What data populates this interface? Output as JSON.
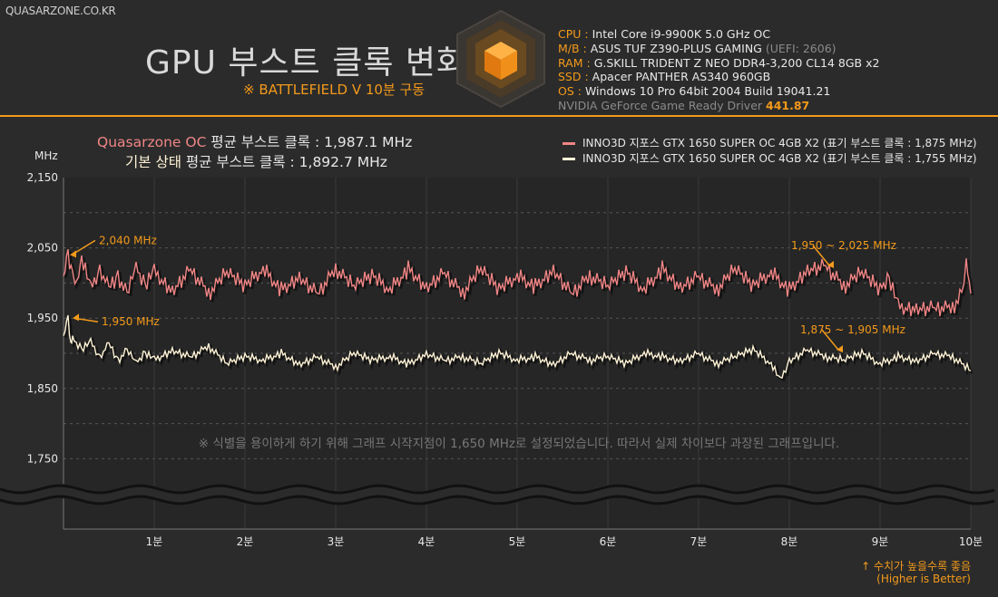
{
  "site_label": "QUASARZONE.CO.KR",
  "title": "GPU 부스트 클록 변화",
  "subtitle": "※ BATTLEFIELD V 10분 구동",
  "specs": [
    {
      "key": "CPU",
      "value": "Intel Core i9-9900K 5.0 GHz OC",
      "note": ""
    },
    {
      "key": "M/B",
      "value": "ASUS TUF Z390-PLUS GAMING",
      "note": "(UEFI: 2606)"
    },
    {
      "key": "RAM",
      "value": "G.SKILL TRIDENT Z NEO DDR4-3,200 CL14 8GB x2",
      "note": ""
    },
    {
      "key": "SSD",
      "value": "Apacer PANTHER AS340 960GB",
      "note": ""
    },
    {
      "key": "OS",
      "value": "Windows 10 Pro 64bit 2004 Build 19041.21",
      "note": ""
    }
  ],
  "driver": {
    "label": "NVIDIA GeForce Game Ready Driver",
    "version": "441.87"
  },
  "averages": [
    {
      "name": "Quasarzone OC",
      "text": "평균 부스트 클록 : 1,987.1 MHz"
    },
    {
      "name": "기본 상태",
      "text": "평균 부스트 클록 : 1,892.7 MHz"
    }
  ],
  "better_note": {
    "line1": "↑ 수치가 높을수록 좋음",
    "line2": "(Higher is Better)"
  },
  "colors": {
    "oc": "#f08585",
    "stock": "#fff3d6",
    "accent": "#f39a1b",
    "background": "#2b2b2b"
  },
  "chart_data": {
    "type": "line",
    "ylabel": "MHz",
    "ylim": [
      1650,
      2150
    ],
    "yticks": [
      1750,
      1850,
      1950,
      2050,
      2150
    ],
    "ytick_labels": [
      "1,750",
      "1,850",
      "1,950",
      "2,050",
      "2,150"
    ],
    "xlim": [
      0,
      10
    ],
    "xticks": [
      1,
      2,
      3,
      4,
      5,
      6,
      7,
      8,
      9,
      10
    ],
    "xtick_labels": [
      "1분",
      "2분",
      "3분",
      "4분",
      "5분",
      "6분",
      "7분",
      "8분",
      "9분",
      "10분"
    ],
    "grid": true,
    "legend_position": "top-right",
    "axis_break": true,
    "note": "※ 식별을 용이하게 하기 위해 그래프 시작지점이 1,650 MHz로 설정되었습니다. 따라서 실제 차이보다 과장된 그래프입니다.",
    "series": [
      {
        "name": "INNO3D 지포스 GTX 1650 SUPER OC 4GB X2 (표기 부스트 클록 : 1,875 MHz)",
        "color": "#f08585",
        "x": [
          0,
          0.05,
          0.1,
          0.15,
          0.2,
          0.3,
          0.4,
          0.5,
          0.6,
          0.7,
          0.8,
          0.9,
          1.0,
          1.2,
          1.4,
          1.6,
          1.8,
          2.0,
          2.2,
          2.4,
          2.6,
          2.8,
          3.0,
          3.2,
          3.4,
          3.6,
          3.8,
          4.0,
          4.2,
          4.4,
          4.6,
          4.8,
          5.0,
          5.2,
          5.4,
          5.6,
          5.8,
          6.0,
          6.2,
          6.4,
          6.6,
          6.8,
          7.0,
          7.2,
          7.4,
          7.6,
          7.8,
          8.0,
          8.2,
          8.4,
          8.6,
          8.8,
          9.0,
          9.1,
          9.2,
          9.4,
          9.6,
          9.8,
          9.9,
          9.95,
          10.0
        ],
        "y": [
          2010,
          2040,
          2015,
          1995,
          2035,
          1990,
          2020,
          1995,
          2010,
          1985,
          2020,
          1995,
          2015,
          1990,
          2020,
          1985,
          2015,
          1995,
          2020,
          1990,
          2010,
          1985,
          2020,
          1995,
          2010,
          1990,
          2020,
          1995,
          2015,
          1985,
          2020,
          1990,
          2010,
          1995,
          2020,
          1985,
          2010,
          1995,
          2015,
          1990,
          2020,
          1995,
          2010,
          1990,
          2020,
          1995,
          2015,
          1990,
          2020,
          2025,
          1995,
          2015,
          1990,
          2005,
          1965,
          1965,
          1965,
          1965,
          1985,
          2025,
          1985
        ]
      },
      {
        "name": "INNO3D 지포스 GTX 1650 SUPER OC 4GB X2 (표기 부스트 클록 : 1,755 MHz)",
        "color": "#fff3d6",
        "x": [
          0,
          0.05,
          0.08,
          0.1,
          0.2,
          0.3,
          0.4,
          0.5,
          0.6,
          0.7,
          0.8,
          0.9,
          1.0,
          1.2,
          1.4,
          1.6,
          1.8,
          2.0,
          2.2,
          2.4,
          2.6,
          2.8,
          3.0,
          3.2,
          3.4,
          3.6,
          3.8,
          4.0,
          4.2,
          4.4,
          4.6,
          4.8,
          5.0,
          5.2,
          5.4,
          5.6,
          5.8,
          6.0,
          6.2,
          6.4,
          6.6,
          6.8,
          7.0,
          7.2,
          7.4,
          7.6,
          7.8,
          7.9,
          8.0,
          8.2,
          8.4,
          8.6,
          8.8,
          9.0,
          9.2,
          9.4,
          9.6,
          9.8,
          10.0
        ],
        "y": [
          1925,
          1950,
          1915,
          1920,
          1905,
          1915,
          1895,
          1915,
          1890,
          1905,
          1885,
          1900,
          1890,
          1905,
          1895,
          1910,
          1885,
          1895,
          1890,
          1900,
          1885,
          1895,
          1880,
          1900,
          1890,
          1895,
          1885,
          1900,
          1890,
          1895,
          1885,
          1900,
          1890,
          1895,
          1885,
          1900,
          1890,
          1895,
          1885,
          1900,
          1895,
          1890,
          1900,
          1885,
          1895,
          1905,
          1885,
          1860,
          1890,
          1905,
          1895,
          1890,
          1900,
          1885,
          1895,
          1890,
          1900,
          1895,
          1875
        ]
      }
    ],
    "annotations": [
      {
        "text": "2,040 MHz",
        "x": 0.05,
        "y": 2040,
        "series": 0
      },
      {
        "text": "1,950 MHz",
        "x": 0.08,
        "y": 1950,
        "series": 1
      },
      {
        "text": "1,950 ~ 2,025 MHz",
        "x": 8.4,
        "y": 2025,
        "series": 0
      },
      {
        "text": "1,875 ~ 1,905 MHz",
        "x": 8.5,
        "y": 1905,
        "series": 1
      }
    ]
  }
}
